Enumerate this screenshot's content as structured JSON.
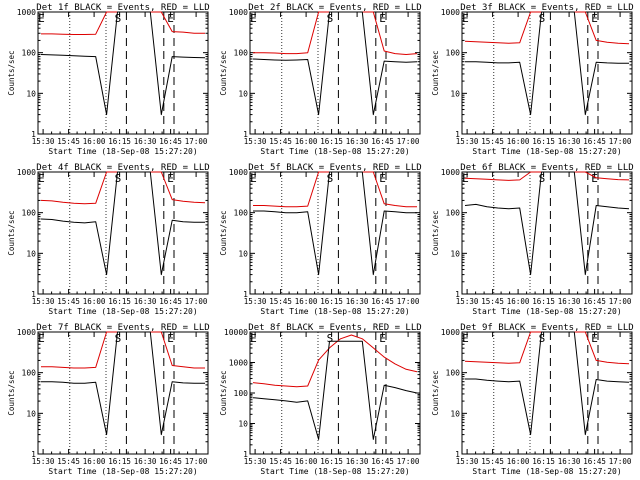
{
  "figure": {
    "xlabel": "Start Time (18-Sep-08 15:27:20)",
    "ylabel": "Counts/sec"
  },
  "colors": {
    "events": "#000000",
    "lld": "#dd0000",
    "axes": "#000000",
    "background": "#ffffff"
  },
  "chart_data": [
    {
      "type": "line",
      "title": "Det 1f BLACK = Events, RED = LLD",
      "xlabel": "Start Time (18-Sep-08 15:27:20)",
      "ylabel": "Counts/sec",
      "x_ticks": [
        "15:30",
        "15:45",
        "16:00",
        "16:15",
        "16:30",
        "16:45",
        "17:00"
      ],
      "y_ticks": [
        "1",
        "10",
        "100",
        "1000"
      ],
      "ylim": [
        1,
        1000
      ],
      "yscale": "log",
      "markers": [
        "E",
        "S",
        "E"
      ],
      "series": [
        {
          "values": [
            290,
            290,
            285,
            280,
            280,
            285,
            1000,
            1000,
            1000,
            1000,
            1000,
            1000,
            330,
            320,
            300,
            300
          ]
        },
        {
          "values": [
            90,
            88,
            86,
            84,
            82,
            80,
            3,
            1000,
            1000,
            1000,
            1000,
            3,
            80,
            78,
            76,
            75
          ]
        }
      ]
    },
    {
      "type": "line",
      "title": "Det 2f BLACK = Events, RED = LLD",
      "xlabel": "Start Time (18-Sep-08 15:27:20)",
      "ylabel": "Counts/sec",
      "x_ticks": [
        "15:30",
        "15:45",
        "16:00",
        "16:15",
        "16:30",
        "16:45",
        "17:00"
      ],
      "y_ticks": [
        "1",
        "10",
        "100",
        "1000"
      ],
      "ylim": [
        1,
        1000
      ],
      "yscale": "log",
      "markers": [
        "E",
        "S",
        "E"
      ],
      "series": [
        {
          "values": [
            100,
            100,
            98,
            95,
            95,
            100,
            1000,
            1000,
            1000,
            1000,
            1000,
            1000,
            110,
            95,
            90,
            95
          ]
        },
        {
          "values": [
            70,
            68,
            66,
            65,
            66,
            68,
            3,
            1000,
            1000,
            1000,
            1000,
            3,
            62,
            60,
            58,
            60
          ]
        }
      ]
    },
    {
      "type": "line",
      "title": "Det 3f BLACK = Events, RED = LLD",
      "xlabel": "Start Time (18-Sep-08 15:27:20)",
      "ylabel": "Counts/sec",
      "x_ticks": [
        "15:30",
        "15:45",
        "16:00",
        "16:15",
        "16:30",
        "16:45",
        "17:00"
      ],
      "y_ticks": [
        "1",
        "10",
        "100",
        "1000"
      ],
      "ylim": [
        1,
        1000
      ],
      "yscale": "log",
      "markers": [
        "E",
        "S",
        "E"
      ],
      "series": [
        {
          "values": [
            190,
            185,
            180,
            175,
            170,
            175,
            1000,
            1000,
            1000,
            1000,
            1000,
            1000,
            200,
            180,
            170,
            165
          ]
        },
        {
          "values": [
            60,
            60,
            58,
            56,
            56,
            58,
            3,
            1000,
            1000,
            1000,
            1000,
            3,
            58,
            56,
            55,
            55
          ]
        }
      ]
    },
    {
      "type": "line",
      "title": "Det 4f BLACK = Events, RED = LLD",
      "xlabel": "Start Time (18-Sep-08 15:27:20)",
      "ylabel": "Counts/sec",
      "x_ticks": [
        "15:30",
        "15:45",
        "16:00",
        "16:15",
        "16:30",
        "16:45",
        "17:00"
      ],
      "y_ticks": [
        "1",
        "10",
        "100",
        "1000"
      ],
      "ylim": [
        1,
        1000
      ],
      "yscale": "log",
      "markers": [
        "E",
        "S",
        "E"
      ],
      "series": [
        {
          "values": [
            200,
            195,
            180,
            170,
            165,
            170,
            1000,
            1000,
            1000,
            1000,
            1000,
            1000,
            210,
            190,
            180,
            175
          ]
        },
        {
          "values": [
            70,
            68,
            62,
            58,
            56,
            60,
            3,
            1000,
            1000,
            1000,
            1000,
            3,
            65,
            60,
            58,
            58
          ]
        }
      ]
    },
    {
      "type": "line",
      "title": "Det 5f BLACK = Events, RED = LLD",
      "xlabel": "Start Time (18-Sep-08 15:27:20)",
      "ylabel": "Counts/sec",
      "x_ticks": [
        "15:30",
        "15:45",
        "16:00",
        "16:15",
        "16:30",
        "16:45",
        "17:00"
      ],
      "y_ticks": [
        "1",
        "10",
        "100",
        "1000"
      ],
      "ylim": [
        1,
        1000
      ],
      "yscale": "log",
      "markers": [
        "E",
        "S",
        "E"
      ],
      "series": [
        {
          "values": [
            150,
            150,
            145,
            140,
            140,
            145,
            1000,
            1000,
            1000,
            1000,
            1000,
            1000,
            165,
            150,
            140,
            140
          ]
        },
        {
          "values": [
            110,
            110,
            105,
            100,
            100,
            105,
            3,
            1000,
            1000,
            1000,
            1000,
            3,
            110,
            105,
            100,
            100
          ]
        }
      ]
    },
    {
      "type": "line",
      "title": "Det 6f BLACK = Events, RED = LLD",
      "xlabel": "Start Time (18-Sep-08 15:27:20)",
      "ylabel": "Counts/sec",
      "x_ticks": [
        "15:30",
        "15:45",
        "16:00",
        "16:15",
        "16:30",
        "16:45",
        "17:00"
      ],
      "y_ticks": [
        "1",
        "10",
        "100",
        "1000"
      ],
      "ylim": [
        1,
        1000
      ],
      "yscale": "log",
      "markers": [
        "E",
        "S",
        "E"
      ],
      "series": [
        {
          "values": [
            700,
            680,
            660,
            640,
            620,
            640,
            1000,
            1000,
            1000,
            1000,
            1000,
            1000,
            720,
            680,
            650,
            640
          ]
        },
        {
          "values": [
            150,
            160,
            140,
            130,
            125,
            130,
            3,
            1000,
            1000,
            1000,
            1000,
            3,
            150,
            140,
            130,
            125
          ]
        }
      ]
    },
    {
      "type": "line",
      "title": "Det 7f BLACK = Events, RED = LLD",
      "xlabel": "Start Time (18-Sep-08 15:27:20)",
      "ylabel": "Counts/sec",
      "x_ticks": [
        "15:30",
        "15:45",
        "16:00",
        "16:15",
        "16:30",
        "16:45",
        "17:00"
      ],
      "y_ticks": [
        "1",
        "10",
        "100",
        "1000"
      ],
      "ylim": [
        1,
        1000
      ],
      "yscale": "log",
      "markers": [
        "E",
        "S",
        "E"
      ],
      "series": [
        {
          "values": [
            140,
            140,
            135,
            130,
            130,
            135,
            1000,
            1000,
            1000,
            1000,
            1000,
            1000,
            150,
            140,
            130,
            130
          ]
        },
        {
          "values": [
            60,
            60,
            58,
            55,
            55,
            58,
            3,
            1000,
            1000,
            1000,
            1000,
            3,
            60,
            56,
            55,
            55
          ]
        }
      ]
    },
    {
      "type": "line",
      "title": "Det 8f BLACK = Events, RED = LLD",
      "xlabel": "Start Time (18-Sep-08 15:27:20)",
      "ylabel": "Counts/sec",
      "x_ticks": [
        "15:30",
        "15:45",
        "16:00",
        "16:15",
        "16:30",
        "16:45",
        "17:00"
      ],
      "y_ticks": [
        "1",
        "10",
        "100",
        "1000",
        "10000"
      ],
      "ylim": [
        1,
        10000
      ],
      "yscale": "log",
      "markers": [
        "E",
        "S",
        "E"
      ],
      "series": [
        {
          "values": [
            220,
            200,
            180,
            170,
            160,
            170,
            1200,
            3000,
            6000,
            8000,
            6000,
            3000,
            1500,
            900,
            600,
            500
          ]
        },
        {
          "values": [
            70,
            65,
            60,
            55,
            50,
            55,
            3,
            5000,
            5000,
            5000,
            5000,
            3,
            180,
            150,
            120,
            100
          ]
        }
      ]
    },
    {
      "type": "line",
      "title": "Det 9f BLACK = Events, RED = LLD",
      "xlabel": "Start Time (18-Sep-08 15:27:20)",
      "ylabel": "Counts/sec",
      "x_ticks": [
        "15:30",
        "15:45",
        "16:00",
        "16:15",
        "16:30",
        "16:45",
        "17:00"
      ],
      "y_ticks": [
        "1",
        "10",
        "100",
        "1000"
      ],
      "ylim": [
        1,
        1000
      ],
      "yscale": "log",
      "markers": [
        "E",
        "S",
        "E"
      ],
      "series": [
        {
          "values": [
            190,
            185,
            180,
            175,
            170,
            175,
            1000,
            1000,
            1000,
            1000,
            1000,
            1000,
            200,
            180,
            170,
            165
          ]
        },
        {
          "values": [
            70,
            70,
            65,
            62,
            60,
            62,
            3,
            1000,
            1000,
            1000,
            1000,
            3,
            68,
            62,
            60,
            58
          ]
        }
      ]
    }
  ]
}
